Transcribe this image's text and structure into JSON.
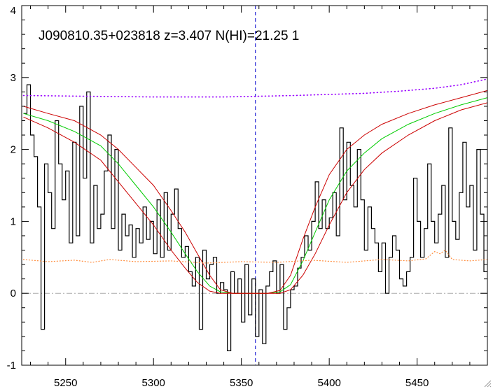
{
  "chart_data": {
    "type": "line",
    "title": "J090810.35+023818 z=3.407 N(HI)=21.25 1",
    "xlabel": "",
    "ylabel": "",
    "xlim": [
      5225,
      5490
    ],
    "ylim": [
      -1,
      4
    ],
    "x_ticks": [
      5250,
      5300,
      5350,
      5400,
      5450
    ],
    "y_ticks": [
      -1,
      0,
      1,
      2,
      3,
      4
    ],
    "grid": false,
    "legend": "none",
    "colors": {
      "flux": "#000000",
      "fit": "#00cc00",
      "fit_bounds": "#cc0000",
      "continuum": "#9900ff",
      "error": "#ff8c3c",
      "zero_line": "#aaaaaa",
      "line_center": "#0000cc"
    },
    "line_center_x": 5358,
    "zero_level": 0,
    "series": [
      {
        "role": "flux",
        "style": "step",
        "x": [
          5226,
          5228,
          5230,
          5232,
          5234,
          5236,
          5238,
          5240,
          5242,
          5244,
          5246,
          5248,
          5250,
          5252,
          5254,
          5256,
          5258,
          5260,
          5262,
          5264,
          5266,
          5268,
          5270,
          5272,
          5274,
          5276,
          5278,
          5280,
          5282,
          5284,
          5286,
          5288,
          5290,
          5292,
          5294,
          5296,
          5298,
          5300,
          5302,
          5304,
          5306,
          5308,
          5310,
          5312,
          5314,
          5316,
          5318,
          5320,
          5322,
          5324,
          5326,
          5328,
          5330,
          5332,
          5334,
          5336,
          5338,
          5340,
          5342,
          5344,
          5346,
          5348,
          5350,
          5352,
          5354,
          5356,
          5358,
          5360,
          5362,
          5364,
          5366,
          5368,
          5370,
          5372,
          5374,
          5376,
          5378,
          5380,
          5382,
          5384,
          5386,
          5388,
          5390,
          5392,
          5394,
          5396,
          5398,
          5400,
          5402,
          5404,
          5406,
          5408,
          5410,
          5412,
          5414,
          5416,
          5418,
          5420,
          5422,
          5424,
          5426,
          5428,
          5430,
          5432,
          5434,
          5436,
          5438,
          5440,
          5442,
          5444,
          5446,
          5448,
          5450,
          5452,
          5454,
          5456,
          5458,
          5460,
          5462,
          5464,
          5466,
          5468,
          5470,
          5472,
          5474,
          5476,
          5478,
          5480,
          5482,
          5484,
          5486,
          5488
        ],
        "y": [
          2.5,
          2.9,
          2.2,
          1.9,
          1.2,
          -0.5,
          1.8,
          1.4,
          0.9,
          2.4,
          1.8,
          1.3,
          1.7,
          0.7,
          2.1,
          0.8,
          2.6,
          1.6,
          2.8,
          0.7,
          1.5,
          0.9,
          1.1,
          1.7,
          2.2,
          0.9,
          2.0,
          0.6,
          1.1,
          0.8,
          0.95,
          0.5,
          0.9,
          0.7,
          1.2,
          0.75,
          1.0,
          0.55,
          1.3,
          0.5,
          1.4,
          0.6,
          1.1,
          1.45,
          0.9,
          0.5,
          0.65,
          0.3,
          0.1,
          0.5,
          -0.5,
          0.6,
          0.2,
          0.4,
          0.5,
          0.0,
          0.15,
          0.05,
          -0.8,
          0.3,
          0.0,
          0.2,
          -0.4,
          0.4,
          -0.3,
          0.2,
          -0.6,
          0.05,
          -0.7,
          0.1,
          0.3,
          0.45,
          0.0,
          0.4,
          -0.5,
          -0.2,
          0.05,
          0.1,
          0.35,
          0.5,
          0.8,
          0.6,
          1.0,
          1.55,
          0.9,
          1.3,
          0.9,
          1.05,
          1.4,
          0.8,
          2.3,
          1.3,
          2.1,
          1.5,
          1.2,
          2.0,
          1.3,
          0.6,
          1.2,
          0.9,
          0.7,
          0.3,
          0.7,
          0.0,
          0.5,
          0.8,
          0.6,
          0.2,
          0.1,
          0.3,
          0.5,
          1.6,
          1.0,
          0.5,
          0.9,
          1.8,
          1.0,
          0.7,
          1.1,
          1.5,
          0.5,
          2.3,
          1.0,
          0.75,
          1.4,
          2.1,
          1.2,
          1.5,
          0.6,
          2.0,
          1.1,
          0.3
        ],
        "name": ""
      },
      {
        "role": "fit",
        "style": "line",
        "x": [
          5226,
          5240,
          5255,
          5270,
          5280,
          5290,
          5300,
          5310,
          5318,
          5325,
          5332,
          5338,
          5345,
          5355,
          5365,
          5372,
          5378,
          5385,
          5392,
          5400,
          5410,
          5420,
          5430,
          5445,
          5460,
          5475,
          5490
        ],
        "y": [
          2.5,
          2.4,
          2.25,
          2.05,
          1.8,
          1.5,
          1.2,
          0.85,
          0.55,
          0.3,
          0.1,
          0.02,
          0.0,
          0.0,
          0.0,
          0.02,
          0.12,
          0.45,
          0.85,
          1.3,
          1.7,
          1.95,
          2.15,
          2.35,
          2.5,
          2.62,
          2.72
        ],
        "name": ""
      },
      {
        "role": "fit_upper",
        "style": "line",
        "x": [
          5226,
          5240,
          5255,
          5270,
          5280,
          5290,
          5300,
          5310,
          5318,
          5325,
          5332,
          5338,
          5345,
          5355,
          5365,
          5372,
          5378,
          5385,
          5392,
          5400,
          5410,
          5420,
          5430,
          5445,
          5460,
          5475,
          5490
        ],
        "y": [
          2.6,
          2.5,
          2.4,
          2.2,
          2.0,
          1.75,
          1.5,
          1.15,
          0.85,
          0.55,
          0.25,
          0.05,
          0.0,
          0.0,
          0.0,
          0.04,
          0.25,
          0.75,
          1.2,
          1.65,
          2.0,
          2.2,
          2.35,
          2.5,
          2.62,
          2.72,
          2.82
        ],
        "name": ""
      },
      {
        "role": "fit_lower",
        "style": "line",
        "x": [
          5226,
          5240,
          5255,
          5270,
          5280,
          5290,
          5300,
          5310,
          5318,
          5325,
          5332,
          5338,
          5345,
          5355,
          5365,
          5372,
          5378,
          5385,
          5392,
          5400,
          5410,
          5420,
          5430,
          5445,
          5460,
          5475,
          5490
        ],
        "y": [
          2.45,
          2.3,
          2.1,
          1.85,
          1.55,
          1.25,
          0.95,
          0.6,
          0.35,
          0.15,
          0.03,
          0.0,
          0.0,
          0.0,
          0.0,
          0.0,
          0.05,
          0.25,
          0.55,
          0.95,
          1.4,
          1.72,
          1.95,
          2.2,
          2.4,
          2.55,
          2.65
        ],
        "name": ""
      },
      {
        "role": "continuum",
        "style": "dotted",
        "x": [
          5226,
          5260,
          5300,
          5340,
          5380,
          5420,
          5440,
          5460,
          5475,
          5490
        ],
        "y": [
          2.75,
          2.74,
          2.73,
          2.73,
          2.75,
          2.78,
          2.81,
          2.85,
          2.9,
          2.98
        ],
        "name": ""
      },
      {
        "role": "error",
        "style": "dotted",
        "x": [
          5226,
          5240,
          5255,
          5265,
          5275,
          5290,
          5310,
          5330,
          5350,
          5370,
          5390,
          5410,
          5430,
          5445,
          5455,
          5460,
          5463,
          5466,
          5470,
          5480,
          5490
        ],
        "y": [
          0.47,
          0.44,
          0.46,
          0.43,
          0.47,
          0.44,
          0.45,
          0.42,
          0.44,
          0.43,
          0.46,
          0.43,
          0.47,
          0.45,
          0.48,
          0.58,
          0.55,
          0.6,
          0.47,
          0.45,
          0.47
        ],
        "name": ""
      }
    ]
  }
}
